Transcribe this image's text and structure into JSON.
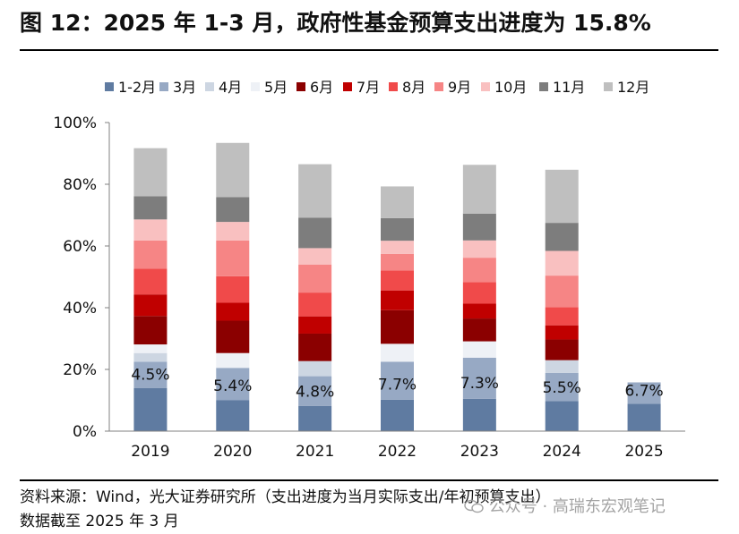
{
  "title": "图 12：2025 年 1-3 月，政府性基金预算支出进度为 15.8%",
  "footer": {
    "source": "资料来源：Wind，光大证券研究所（支出进度为当月实际支出/年初预算支出）",
    "date": "数据截至 2025 年 3 月"
  },
  "watermark": "公众号 · 高瑞东宏观笔记",
  "chart_data": {
    "type": "bar",
    "stacked": true,
    "categories": [
      "2019",
      "2020",
      "2021",
      "2022",
      "2023",
      "2024",
      "2025"
    ],
    "ylim": [
      0,
      100
    ],
    "yticks": [
      "0%",
      "20%",
      "40%",
      "60%",
      "80%",
      "100%"
    ],
    "legend_position": "top",
    "grid": false,
    "series": [
      {
        "name": "1-2月",
        "color": "#5f7ba1",
        "values": [
          14.0,
          10.0,
          8.2,
          10.2,
          10.5,
          9.7,
          8.9
        ]
      },
      {
        "name": "3月",
        "color": "#97a9c4",
        "values": [
          8.5,
          10.5,
          9.6,
          12.3,
          13.3,
          9.2,
          6.9
        ]
      },
      {
        "name": "4月",
        "color": "#cdd6e2",
        "values": [
          2.8,
          0.0,
          4.9,
          0.0,
          0.0,
          4.1,
          0.0
        ]
      },
      {
        "name": "5月",
        "color": "#eef1f6",
        "values": [
          2.8,
          4.8,
          0.0,
          5.8,
          5.3,
          0.0,
          0.0
        ]
      },
      {
        "name": "6月",
        "color": "#8b0000",
        "values": [
          9.2,
          10.5,
          8.9,
          10.9,
          7.4,
          6.7,
          0.0
        ]
      },
      {
        "name": "7月",
        "color": "#c00000",
        "values": [
          7.0,
          5.8,
          5.6,
          6.4,
          4.8,
          4.6,
          0.0
        ]
      },
      {
        "name": "8月",
        "color": "#f04a4a",
        "values": [
          8.3,
          8.6,
          7.7,
          6.5,
          7.0,
          5.9,
          0.0
        ]
      },
      {
        "name": "9月",
        "color": "#f68585",
        "values": [
          9.2,
          11.6,
          9.1,
          5.3,
          7.9,
          10.2,
          0.0
        ]
      },
      {
        "name": "10月",
        "color": "#f9c0c0",
        "values": [
          6.8,
          6.0,
          5.3,
          4.3,
          5.6,
          8.0,
          0.0
        ]
      },
      {
        "name": "11月",
        "color": "#7d7d7d",
        "values": [
          7.5,
          8.0,
          9.9,
          7.3,
          8.7,
          9.1,
          0.0
        ]
      },
      {
        "name": "12月",
        "color": "#bfbfbf",
        "values": [
          15.6,
          17.6,
          17.3,
          10.3,
          15.8,
          17.2,
          0.0
        ]
      }
    ],
    "data_labels": [
      "4.5%",
      "5.4%",
      "4.8%",
      "7.7%",
      "7.3%",
      "5.5%",
      "6.7%"
    ]
  }
}
